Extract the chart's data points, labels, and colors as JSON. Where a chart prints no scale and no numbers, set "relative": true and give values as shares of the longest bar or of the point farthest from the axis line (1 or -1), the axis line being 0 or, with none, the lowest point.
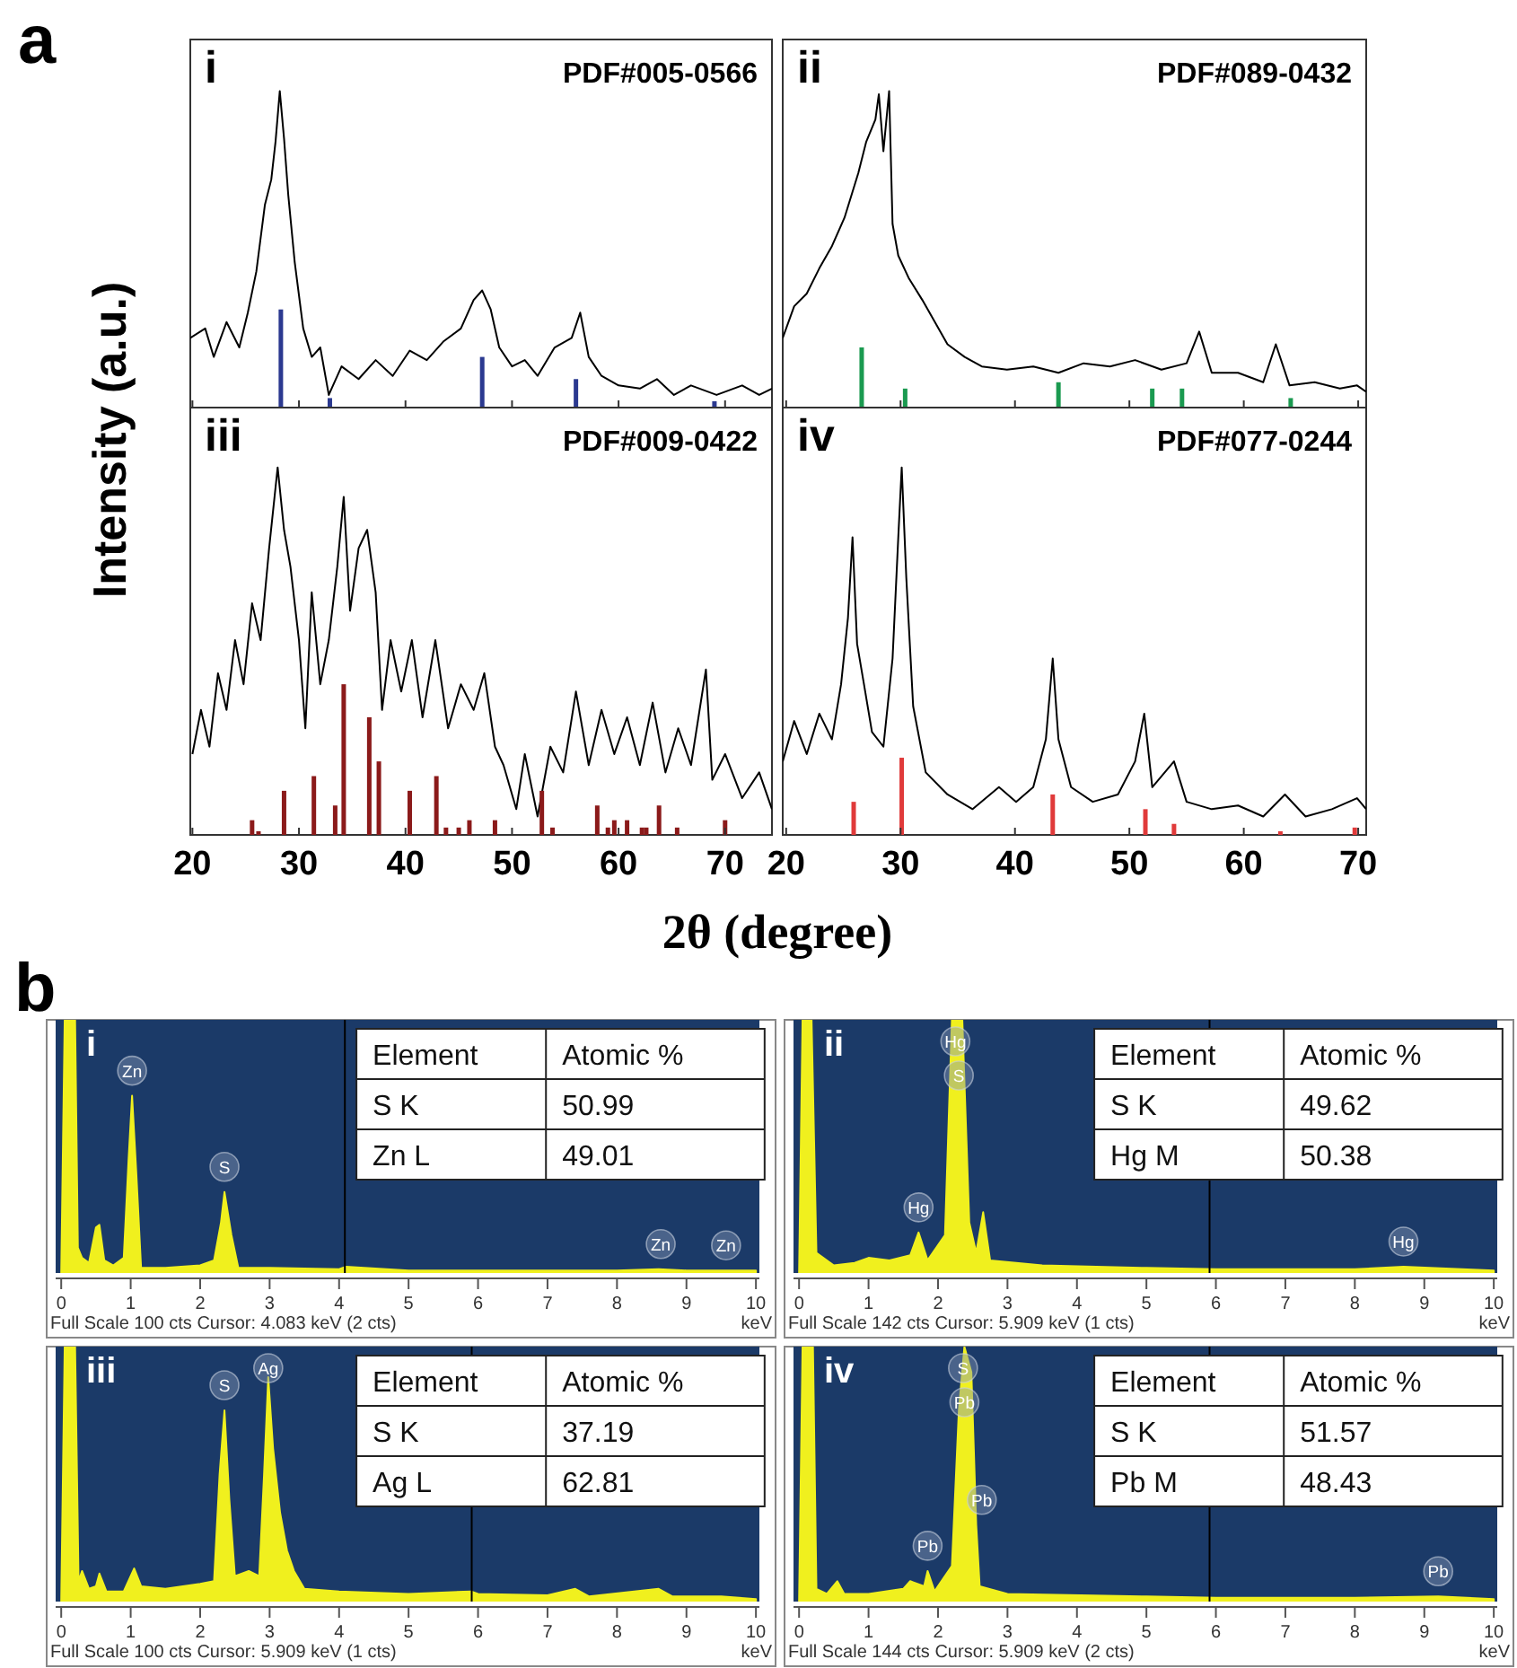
{
  "chart_data": [
    {
      "type": "line",
      "relative": true,
      "xlim": [
        19.8,
        74.4
      ],
      "xticks": [
        20,
        30,
        40,
        50,
        60,
        70
      ],
      "tick_labels": false,
      "ylabel": "Intensity (a.u.)",
      "annotations": [
        "i",
        "PDF#005-0566",
        "a"
      ],
      "series": [
        {
          "type": "line",
          "color": "#000000",
          "x": [
            19.8,
            21.2,
            22,
            23.2,
            24.4,
            25.2,
            26,
            26.8,
            27.4,
            27.8,
            28.2,
            28.6,
            29,
            29.6,
            30.4,
            31.2,
            32,
            32.8,
            34,
            35.6,
            37.2,
            38.8,
            40.4,
            42,
            43.6,
            45.2,
            46.4,
            47.2,
            48,
            48.8,
            50,
            51.2,
            52.4,
            54,
            55.6,
            56.4,
            57.2,
            58.4,
            60,
            62,
            63.6,
            65.2,
            66.8,
            69.2,
            71.6,
            73.2,
            74.4
          ],
          "values": [
            0.22,
            0.25,
            0.16,
            0.27,
            0.19,
            0.3,
            0.43,
            0.64,
            0.72,
            0.84,
            1,
            0.85,
            0.67,
            0.46,
            0.25,
            0.16,
            0.19,
            0.04,
            0.13,
            0.09,
            0.15,
            0.1,
            0.18,
            0.15,
            0.21,
            0.25,
            0.34,
            0.37,
            0.31,
            0.19,
            0.13,
            0.15,
            0.1,
            0.19,
            0.22,
            0.3,
            0.16,
            0.1,
            0.07,
            0.06,
            0.09,
            0.04,
            0.07,
            0.04,
            0.07,
            0.04,
            0.06
          ]
        },
        {
          "type": "bar",
          "color": "#2b3990",
          "x": [
            28.3,
            32.9,
            47.2,
            56,
            69
          ],
          "values": [
            0.31,
            0.03,
            0.16,
            0.09,
            0.02
          ]
        }
      ]
    },
    {
      "type": "line",
      "relative": true,
      "xlim": [
        19.7,
        70.7
      ],
      "xticks": [
        20,
        30,
        40,
        50,
        60,
        70
      ],
      "tick_labels": false,
      "annotations": [
        "ii",
        "PDF#089-0432"
      ],
      "series": [
        {
          "type": "line",
          "color": "#000000",
          "x": [
            19.7,
            20.7,
            21.8,
            22.9,
            24,
            25.1,
            26.3,
            27,
            27.8,
            28.1,
            28.5,
            29,
            29.3,
            29.8,
            30.7,
            31.9,
            33,
            34.1,
            35.6,
            37.1,
            39.3,
            41.6,
            43.8,
            46,
            48.3,
            50.5,
            52.8,
            55,
            56.1,
            57.2,
            59.5,
            61.7,
            62.8,
            64,
            66.2,
            68.4,
            69.9,
            70.7
          ],
          "values": [
            0.22,
            0.32,
            0.36,
            0.44,
            0.51,
            0.6,
            0.74,
            0.84,
            0.91,
            0.99,
            0.81,
            1,
            0.58,
            0.48,
            0.41,
            0.34,
            0.27,
            0.2,
            0.16,
            0.13,
            0.12,
            0.13,
            0.11,
            0.14,
            0.13,
            0.15,
            0.12,
            0.14,
            0.24,
            0.11,
            0.11,
            0.08,
            0.2,
            0.07,
            0.08,
            0.06,
            0.07,
            0.05
          ]
        },
        {
          "type": "bar",
          "color": "#1a9a50",
          "x": [
            26.6,
            30.4,
            43.8,
            52,
            54.6,
            64.1
          ],
          "values": [
            0.19,
            0.06,
            0.08,
            0.06,
            0.06,
            0.03
          ]
        }
      ]
    },
    {
      "type": "line",
      "relative": true,
      "xlim": [
        19.8,
        74.4
      ],
      "xticks": [
        20,
        30,
        40,
        50,
        60,
        70
      ],
      "tick_labels": "x",
      "xlabel": "2θ (degree)",
      "annotations": [
        "iii",
        "PDF#009-0422"
      ],
      "series": [
        {
          "type": "line",
          "color": "#000000",
          "x": [
            20,
            20.8,
            21.6,
            22.4,
            23.2,
            24,
            24.8,
            25.6,
            26.4,
            27.2,
            28,
            28.6,
            29.2,
            30,
            30.6,
            31.2,
            32,
            32.8,
            33.6,
            34.2,
            34.8,
            35.6,
            36.4,
            37.2,
            37.8,
            38.6,
            39.6,
            40.6,
            41.6,
            42.8,
            44,
            45.2,
            46.4,
            47.4,
            48.4,
            49.2,
            50.4,
            51.2,
            52.4,
            53.6,
            54.8,
            56,
            57.2,
            58.4,
            59.6,
            60.8,
            62,
            63.2,
            64.4,
            65.6,
            66.8,
            68.2,
            68.8,
            70,
            71.6,
            73.2,
            74.4
          ],
          "values": [
            0.22,
            0.34,
            0.24,
            0.44,
            0.34,
            0.53,
            0.41,
            0.63,
            0.53,
            0.78,
            1,
            0.83,
            0.73,
            0.53,
            0.29,
            0.66,
            0.41,
            0.53,
            0.73,
            0.92,
            0.61,
            0.78,
            0.83,
            0.66,
            0.34,
            0.53,
            0.39,
            0.53,
            0.32,
            0.53,
            0.29,
            0.41,
            0.34,
            0.44,
            0.24,
            0.19,
            0.07,
            0.22,
            0.05,
            0.24,
            0.17,
            0.39,
            0.19,
            0.34,
            0.22,
            0.32,
            0.19,
            0.36,
            0.17,
            0.29,
            0.19,
            0.45,
            0.15,
            0.22,
            0.1,
            0.17,
            0.07
          ]
        },
        {
          "type": "bar",
          "color": "#8b1a1a",
          "x": [
            25.6,
            26.2,
            28.6,
            31.4,
            33.4,
            34.2,
            36.6,
            37.5,
            40.4,
            42.9,
            43.8,
            45,
            46,
            48.4,
            52.8,
            53.8,
            58,
            59,
            59.6,
            60.8,
            62.2,
            62.6,
            63.8,
            65.5,
            70
          ],
          "values": [
            0.04,
            0.01,
            0.12,
            0.16,
            0.08,
            0.41,
            0.32,
            0.2,
            0.12,
            0.16,
            0.02,
            0.02,
            0.04,
            0.04,
            0.12,
            0.02,
            0.08,
            0.02,
            0.04,
            0.04,
            0.02,
            0.02,
            0.08,
            0.02,
            0.04
          ]
        }
      ]
    },
    {
      "type": "line",
      "relative": true,
      "xlim": [
        19.7,
        70.7
      ],
      "xticks": [
        20,
        30,
        40,
        50,
        60,
        70
      ],
      "tick_labels": "x",
      "annotations": [
        "iv",
        "PDF#077-0244"
      ],
      "series": [
        {
          "type": "line",
          "color": "#000000",
          "x": [
            19.7,
            20.7,
            21.8,
            22.9,
            24,
            24.8,
            25.4,
            25.8,
            26.2,
            26.8,
            27.5,
            28.5,
            29.3,
            29.8,
            30.1,
            30.5,
            31.1,
            32.2,
            34.1,
            36.3,
            38.6,
            40.1,
            41.6,
            42.7,
            43.3,
            43.8,
            44.9,
            46.8,
            49,
            50.5,
            51.3,
            52,
            53.9,
            55,
            57.2,
            59.5,
            61.7,
            63.6,
            65.4,
            67.7,
            69.9,
            70.7
          ],
          "values": [
            0.2,
            0.31,
            0.22,
            0.33,
            0.26,
            0.41,
            0.59,
            0.81,
            0.52,
            0.41,
            0.28,
            0.24,
            0.48,
            0.81,
            1,
            0.7,
            0.35,
            0.17,
            0.11,
            0.07,
            0.13,
            0.09,
            0.13,
            0.26,
            0.48,
            0.26,
            0.13,
            0.09,
            0.11,
            0.2,
            0.33,
            0.13,
            0.2,
            0.09,
            0.07,
            0.08,
            0.05,
            0.11,
            0.05,
            0.07,
            0.1,
            0.07
          ]
        },
        {
          "type": "bar",
          "color": "#e03a3a",
          "x": [
            25.9,
            30.1,
            43.3,
            51.4,
            53.9,
            63.2,
            69.7
          ],
          "values": [
            0.09,
            0.21,
            0.11,
            0.07,
            0.03,
            0.01,
            0.02
          ]
        }
      ]
    },
    {
      "type": "area",
      "relative": true,
      "xlim": [
        -0.08,
        10.05
      ],
      "xticks": [
        0,
        1,
        2,
        3,
        4,
        5,
        6,
        7,
        8,
        9,
        10
      ],
      "xlabel": "keV",
      "ref_lines": [
        {
          "axis": "x",
          "value": 4.083,
          "color": "#000000"
        }
      ],
      "annotations": [
        "i",
        "Full Scale 100 cts  Cursor: 4.083 keV (2 cts)",
        "Element",
        "Atomic %",
        "S K",
        "50.99",
        "Zn L",
        "49.01",
        "b",
        {
          "text": "Zn",
          "x": 1.02,
          "y": 0.7
        },
        {
          "text": "S",
          "x": 2.35,
          "y": 0.32
        },
        {
          "text": "Zn",
          "x": 8.63,
          "y": 0.015
        },
        {
          "text": "Zn",
          "x": 9.57,
          "y": 0.01
        }
      ],
      "series": [
        {
          "color": "#f0f01e",
          "x": [
            0,
            0.05,
            0.2,
            0.24,
            0.3,
            0.4,
            0.5,
            0.55,
            0.62,
            0.75,
            0.9,
            0.97,
            1.02,
            1.08,
            1.15,
            1.5,
            2,
            2.2,
            2.3,
            2.35,
            2.45,
            2.55,
            3,
            4,
            4.1,
            5,
            6,
            7,
            8,
            8.6,
            9,
            9.6,
            10
          ],
          "values": [
            0,
            1,
            1,
            0.1,
            0.06,
            0.04,
            0.18,
            0.19,
            0.05,
            0.03,
            0.06,
            0.45,
            0.7,
            0.4,
            0.02,
            0.02,
            0.03,
            0.05,
            0.2,
            0.32,
            0.15,
            0.02,
            0.02,
            0.015,
            0.025,
            0.01,
            0.01,
            0.01,
            0.01,
            0.015,
            0.01,
            0.01,
            0.01
          ]
        }
      ]
    },
    {
      "type": "area",
      "relative": true,
      "xlim": [
        -0.08,
        10.05
      ],
      "xticks": [
        0,
        1,
        2,
        3,
        4,
        5,
        6,
        7,
        8,
        9,
        10
      ],
      "xlabel": "keV",
      "ref_lines": [
        {
          "axis": "x",
          "value": 5.909,
          "color": "#000000"
        }
      ],
      "annotations": [
        "ii",
        "Full Scale 142 cts  Cursor: 5.909 keV (1 cts)",
        "Element",
        "Atomic %",
        "S K",
        "49.62",
        "Hg M",
        "50.38",
        {
          "text": "Hg",
          "x": 2.25,
          "y": 1
        },
        {
          "text": "S",
          "x": 2.3,
          "y": 1
        },
        {
          "text": "Hg",
          "x": 1.72,
          "y": 0.16
        },
        {
          "text": "Hg",
          "x": 8.7,
          "y": 0.025
        }
      ],
      "series": [
        {
          "color": "#f0f01e",
          "x": [
            0,
            0.05,
            0.18,
            0.25,
            0.5,
            0.8,
            1,
            1.3,
            1.6,
            1.72,
            1.85,
            2.1,
            2.2,
            2.35,
            2.45,
            2.55,
            2.65,
            2.75,
            3.5,
            5,
            6,
            8,
            8.7,
            10
          ],
          "values": [
            0,
            1,
            1,
            0.08,
            0.03,
            0.04,
            0.06,
            0.05,
            0.07,
            0.16,
            0.05,
            0.15,
            1,
            1,
            0.2,
            0.08,
            0.24,
            0.05,
            0.03,
            0.02,
            0.015,
            0.015,
            0.025,
            0.01
          ]
        }
      ]
    },
    {
      "type": "area",
      "relative": true,
      "xlim": [
        -0.08,
        10.05
      ],
      "xticks": [
        0,
        1,
        2,
        3,
        4,
        5,
        6,
        7,
        8,
        9,
        10
      ],
      "xlabel": "keV",
      "ref_lines": [
        {
          "axis": "x",
          "value": 5.909,
          "color": "#000000"
        }
      ],
      "annotations": [
        "iii",
        "Full Scale 100 cts  Cursor: 5.909 keV (1 cts)",
        "Element",
        "Atomic %",
        "S K",
        "37.19",
        "Ag L",
        "62.81",
        {
          "text": "S",
          "x": 2.35,
          "y": 0.75
        },
        {
          "text": "Ag",
          "x": 2.98,
          "y": 0.88
        }
      ],
      "series": [
        {
          "color": "#f0f01e",
          "x": [
            0,
            0.05,
            0.2,
            0.25,
            0.3,
            0.4,
            0.5,
            0.55,
            0.65,
            0.9,
            1.05,
            1.15,
            1.5,
            2,
            2.2,
            2.28,
            2.35,
            2.42,
            2.5,
            2.7,
            2.85,
            2.92,
            2.98,
            3.05,
            3.15,
            3.25,
            3.35,
            3.5,
            4,
            5,
            5.9,
            6,
            7,
            7.4,
            7.6,
            8.6,
            8.8,
            9.5,
            10
          ],
          "values": [
            0,
            1,
            1,
            0.08,
            0.12,
            0.05,
            0.06,
            0.11,
            0.04,
            0.04,
            0.13,
            0.06,
            0.05,
            0.07,
            0.08,
            0.5,
            0.75,
            0.4,
            0.1,
            0.12,
            0.1,
            0.5,
            0.88,
            0.6,
            0.35,
            0.2,
            0.12,
            0.05,
            0.04,
            0.03,
            0.04,
            0.03,
            0.025,
            0.05,
            0.02,
            0.05,
            0.02,
            0.02,
            0.01
          ]
        }
      ]
    },
    {
      "type": "area",
      "relative": true,
      "xlim": [
        -0.08,
        10.05
      ],
      "xticks": [
        0,
        1,
        2,
        3,
        4,
        5,
        6,
        7,
        8,
        9,
        10
      ],
      "xlabel": "keV",
      "ref_lines": [
        {
          "axis": "x",
          "value": 5.909,
          "color": "#000000"
        }
      ],
      "annotations": [
        "iv",
        "Full Scale 144 cts  Cursor: 5.909 keV (2 cts)",
        "Element",
        "Atomic %",
        "S K",
        "51.57",
        "Pb M",
        "48.43",
        {
          "text": "S",
          "x": 2.36,
          "y": 1
        },
        {
          "text": "Pb",
          "x": 2.38,
          "y": 1
        },
        {
          "text": "Pb",
          "x": 2.63,
          "y": 0.3
        },
        {
          "text": "Pb",
          "x": 1.85,
          "y": 0.12
        },
        {
          "text": "Pb",
          "x": 9.2,
          "y": 0.02
        }
      ],
      "series": [
        {
          "color": "#f0f01e",
          "x": [
            0,
            0.05,
            0.2,
            0.25,
            0.4,
            0.55,
            0.65,
            1,
            1.5,
            1.6,
            1.8,
            1.85,
            1.95,
            2.1,
            2.2,
            2.3,
            2.38,
            2.48,
            2.55,
            2.6,
            3,
            5,
            6,
            8,
            9.2,
            10
          ],
          "values": [
            0,
            1,
            1,
            0.05,
            0.03,
            0.08,
            0.03,
            0.03,
            0.05,
            0.08,
            0.06,
            0.12,
            0.04,
            0.1,
            0.14,
            0.75,
            1,
            0.9,
            0.3,
            0.06,
            0.03,
            0.02,
            0.015,
            0.015,
            0.02,
            0.01
          ]
        }
      ]
    }
  ]
}
